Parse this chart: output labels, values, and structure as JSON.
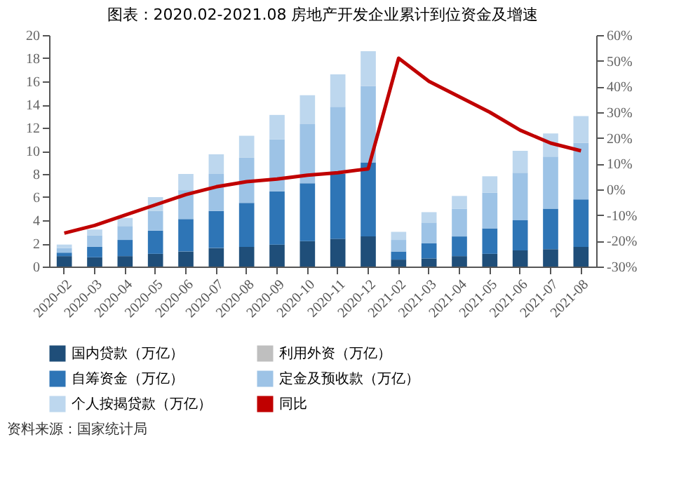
{
  "chart_data": {
    "type": "bar",
    "title": "图表：2020.02-2021.08 房地产开发企业累计到位资金及增速",
    "categories": [
      "2020-02",
      "2020-03",
      "2020-04",
      "2020-05",
      "2020-06",
      "2020-07",
      "2020-08",
      "2020-09",
      "2020-10",
      "2020-11",
      "2020-12",
      "2021-02",
      "2021-03",
      "2021-04",
      "2021-05",
      "2021-06",
      "2021-07",
      "2021-08"
    ],
    "stacked": true,
    "grid": false,
    "legend": "bottom",
    "series": [
      {
        "name": "国内贷款（万亿）",
        "color": "#1f4e79",
        "values": [
          0.9,
          0.8,
          0.9,
          1.1,
          1.3,
          1.6,
          1.7,
          1.9,
          2.2,
          2.4,
          2.6,
          0.6,
          0.7,
          0.9,
          1.1,
          1.4,
          1.5,
          1.7
        ]
      },
      {
        "name": "利用外资（万亿）",
        "color": "#bfbfbf",
        "values": [
          null,
          null,
          null,
          null,
          null,
          null,
          null,
          null,
          null,
          null,
          null,
          null,
          null,
          null,
          null,
          null,
          null,
          null
        ]
      },
      {
        "name": "自筹资金（万亿）",
        "color": "#2e75b6",
        "values": [
          0.3,
          0.9,
          1.4,
          2.0,
          2.8,
          3.2,
          3.8,
          4.6,
          5.0,
          5.6,
          6.4,
          0.7,
          1.3,
          1.7,
          2.2,
          2.6,
          3.5,
          4.1
        ]
      },
      {
        "name": "定金及预收款（万亿）",
        "color": "#9dc3e6",
        "values": [
          0.4,
          1.0,
          1.2,
          1.7,
          2.5,
          3.2,
          3.9,
          4.5,
          5.1,
          5.8,
          6.6,
          1.0,
          1.8,
          2.4,
          3.1,
          4.1,
          4.5,
          4.9
        ]
      },
      {
        "name": "个人按揭贷款（万亿）",
        "color": "#bdd7ee",
        "values": [
          0.3,
          0.5,
          0.7,
          1.2,
          1.4,
          1.7,
          1.9,
          2.1,
          2.5,
          2.8,
          3.0,
          0.7,
          0.9,
          1.1,
          1.4,
          1.9,
          2.0,
          2.3
        ]
      },
      {
        "name": "同比",
        "color": "#c00000",
        "type": "line",
        "axis": "y2",
        "values": [
          -17,
          -14,
          -10,
          -6,
          -2,
          1,
          3,
          4,
          5.5,
          6.5,
          8,
          51,
          42,
          36,
          30,
          23,
          18,
          15
        ]
      }
    ],
    "ylim": [
      0,
      20
    ],
    "yticks": [
      0,
      2,
      4,
      6,
      8,
      10,
      12,
      14,
      16,
      18,
      20
    ],
    "y2lim": [
      -30,
      60
    ],
    "y2ticks": [
      {
        "value": -30,
        "label": "-30%"
      },
      {
        "value": -20,
        "label": "-20%"
      },
      {
        "value": -10,
        "label": "-10%"
      },
      {
        "value": 0,
        "label": "0%"
      },
      {
        "value": 10,
        "label": "10%"
      },
      {
        "value": 20,
        "label": "20%"
      },
      {
        "value": 30,
        "label": "30%"
      },
      {
        "value": 40,
        "label": "40%"
      },
      {
        "value": 50,
        "label": "50%"
      },
      {
        "value": 60,
        "label": "60%"
      }
    ],
    "annotations": [
      "资料来源：国家统计局"
    ]
  }
}
